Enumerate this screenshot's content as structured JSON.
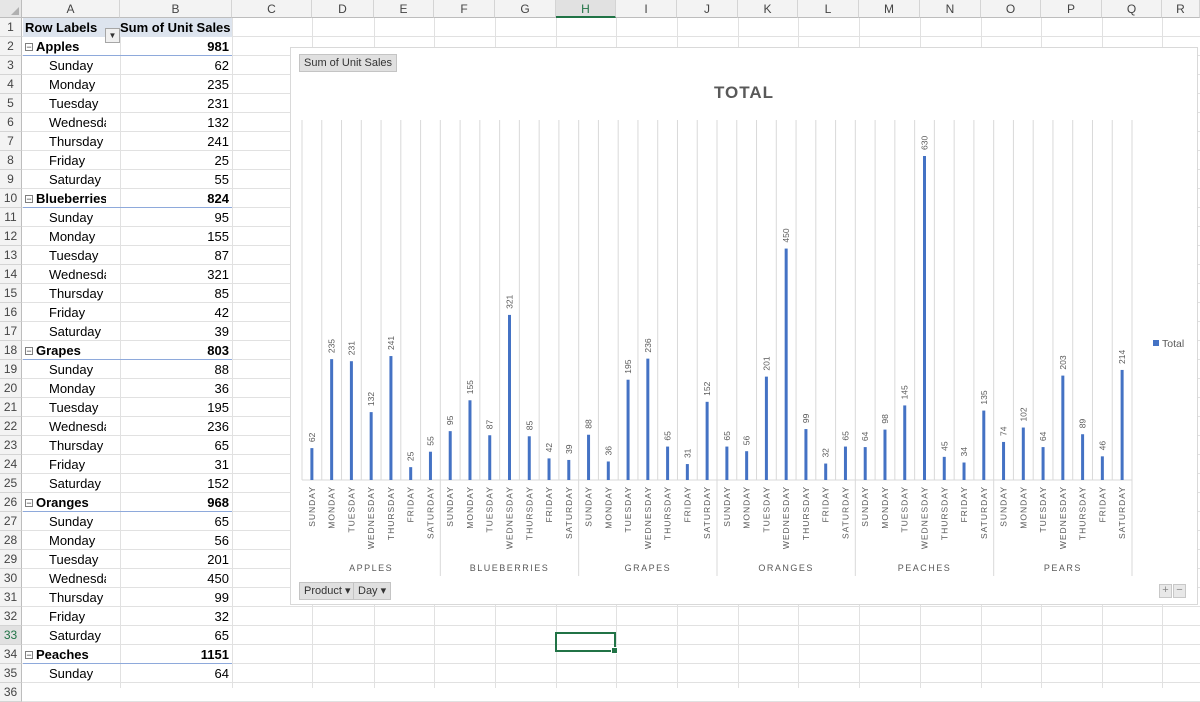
{
  "columns": [
    "A",
    "B",
    "C",
    "D",
    "E",
    "F",
    "G",
    "H",
    "I",
    "J",
    "K",
    "L",
    "M",
    "N",
    "O",
    "P",
    "Q",
    "R"
  ],
  "selected_column": "H",
  "selected_row": "33",
  "pivot": {
    "header_row_labels": "Row Labels",
    "header_sum": "Sum of Unit Sales",
    "groups": [
      {
        "name": "Apples",
        "total": "981",
        "days": [
          [
            "Sunday",
            "62"
          ],
          [
            "Monday",
            "235"
          ],
          [
            "Tuesday",
            "231"
          ],
          [
            "Wednesday",
            "132"
          ],
          [
            "Thursday",
            "241"
          ],
          [
            "Friday",
            "25"
          ],
          [
            "Saturday",
            "55"
          ]
        ]
      },
      {
        "name": "Blueberries",
        "total": "824",
        "days": [
          [
            "Sunday",
            "95"
          ],
          [
            "Monday",
            "155"
          ],
          [
            "Tuesday",
            "87"
          ],
          [
            "Wednesday",
            "321"
          ],
          [
            "Thursday",
            "85"
          ],
          [
            "Friday",
            "42"
          ],
          [
            "Saturday",
            "39"
          ]
        ]
      },
      {
        "name": "Grapes",
        "total": "803",
        "days": [
          [
            "Sunday",
            "88"
          ],
          [
            "Monday",
            "36"
          ],
          [
            "Tuesday",
            "195"
          ],
          [
            "Wednesday",
            "236"
          ],
          [
            "Thursday",
            "65"
          ],
          [
            "Friday",
            "31"
          ],
          [
            "Saturday",
            "152"
          ]
        ]
      },
      {
        "name": "Oranges",
        "total": "968",
        "days": [
          [
            "Sunday",
            "65"
          ],
          [
            "Monday",
            "56"
          ],
          [
            "Tuesday",
            "201"
          ],
          [
            "Wednesday",
            "450"
          ],
          [
            "Thursday",
            "99"
          ],
          [
            "Friday",
            "32"
          ],
          [
            "Saturday",
            "65"
          ]
        ]
      },
      {
        "name": "Peaches",
        "total": "1151",
        "days": [
          [
            "Sunday",
            "64"
          ]
        ]
      }
    ]
  },
  "chart_buttons": {
    "value_field": "Sum of Unit Sales",
    "product": "Product",
    "day": "Day"
  },
  "chart_data": {
    "type": "bar",
    "title": "TOTAL",
    "legend": "Total",
    "legend_position": "right",
    "bar_color": "#4472c4",
    "ylim": [
      0,
      700
    ],
    "categories": [
      "APPLES",
      "BLUEBERRIES",
      "GRAPES",
      "ORANGES",
      "PEACHES",
      "PEARS"
    ],
    "subcategories": [
      "SUNDAY",
      "MONDAY",
      "TUESDAY",
      "WEDNESDAY",
      "THURSDAY",
      "FRIDAY",
      "SATURDAY"
    ],
    "series": [
      {
        "name": "Total",
        "values": [
          [
            62,
            235,
            231,
            132,
            241,
            25,
            55
          ],
          [
            95,
            155,
            87,
            321,
            85,
            42,
            39
          ],
          [
            88,
            36,
            195,
            236,
            65,
            31,
            152
          ],
          [
            65,
            56,
            201,
            450,
            99,
            32,
            65
          ],
          [
            64,
            98,
            145,
            630,
            45,
            34,
            135
          ],
          [
            74,
            102,
            64,
            203,
            89,
            46,
            214
          ]
        ]
      }
    ]
  }
}
